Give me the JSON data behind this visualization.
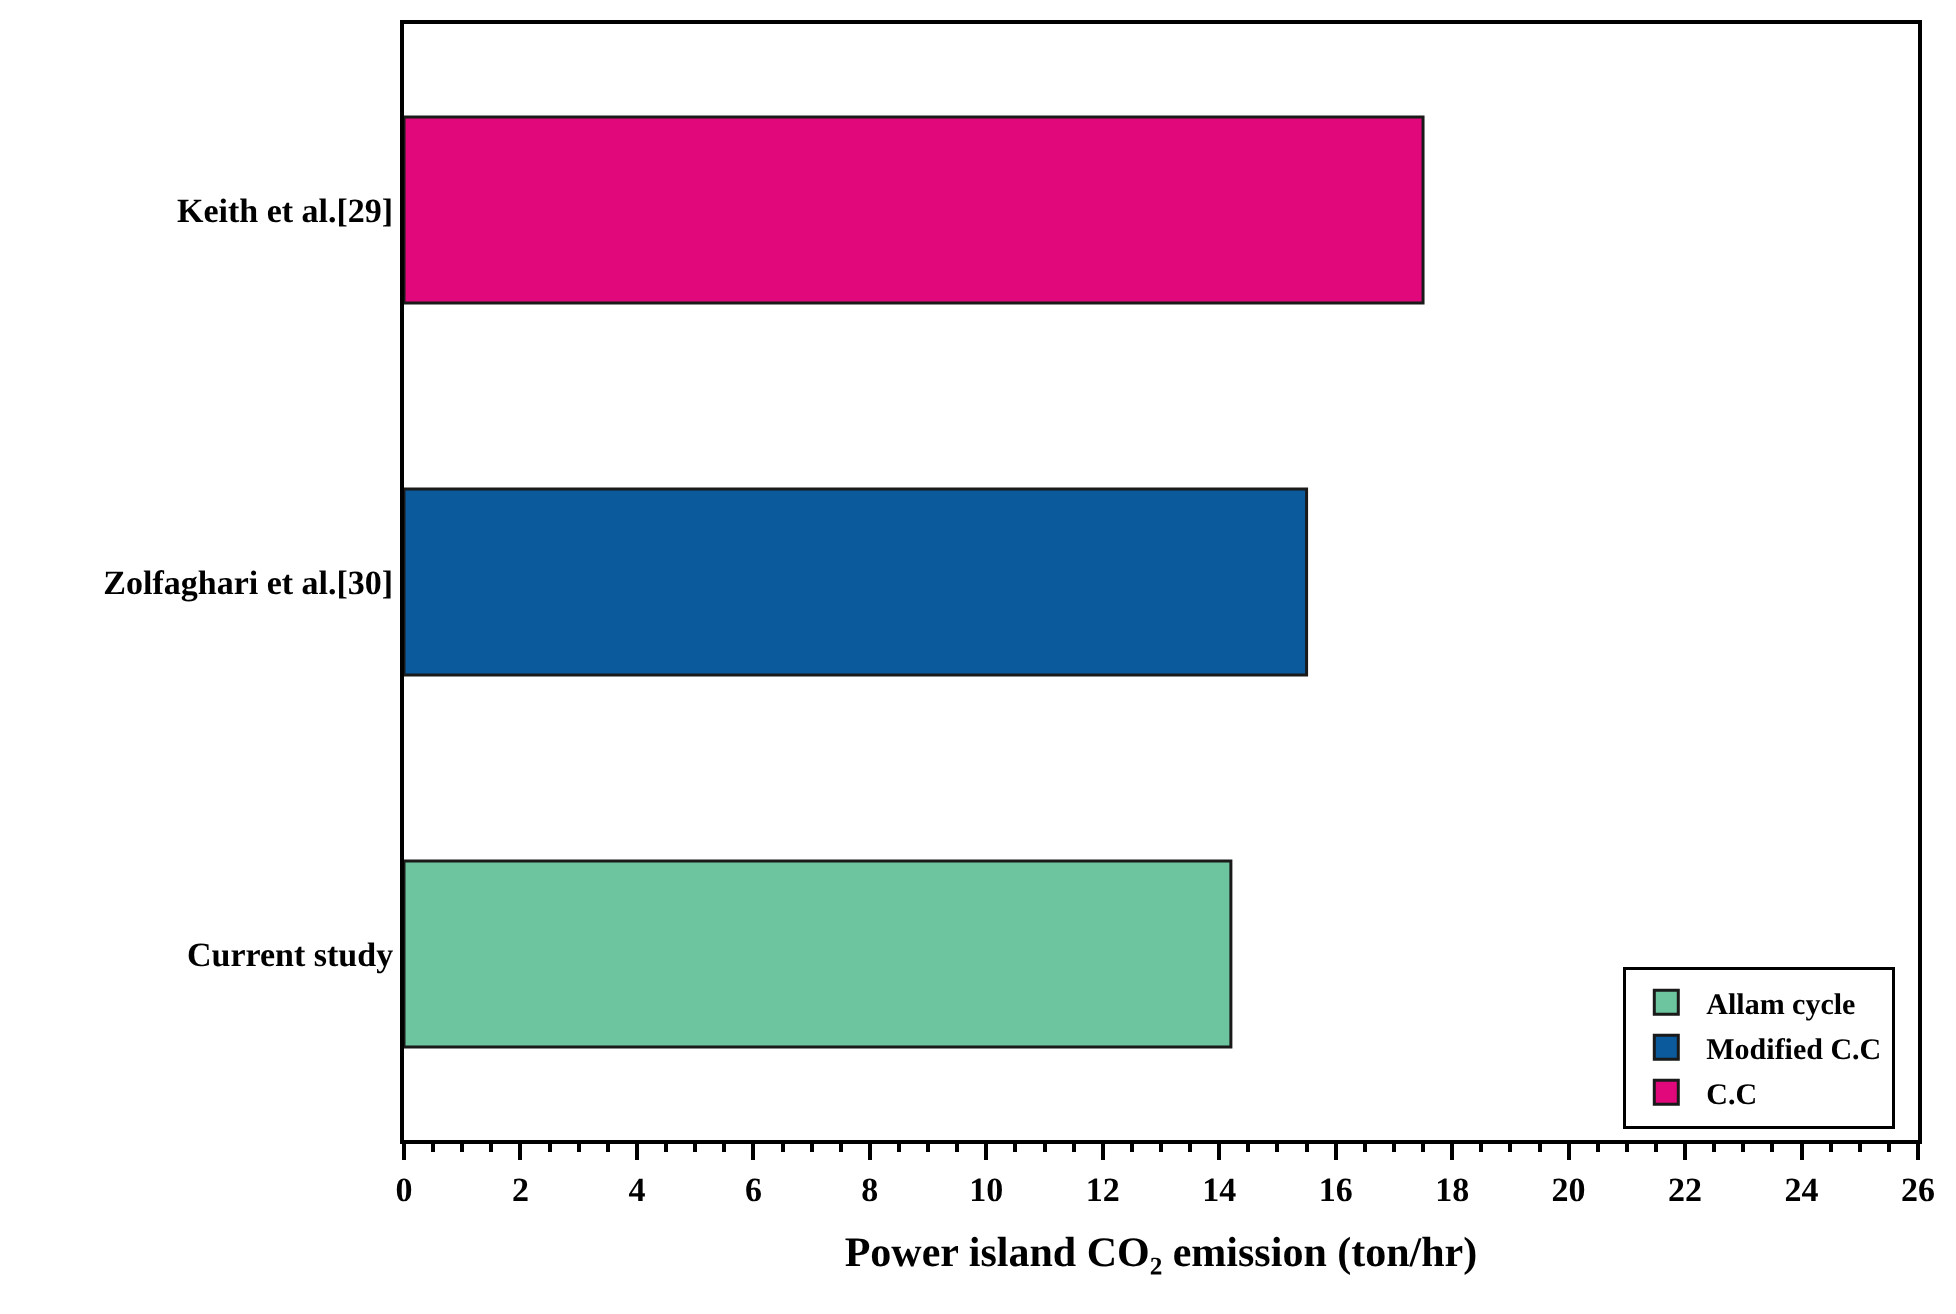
{
  "chart_data": {
    "type": "bar",
    "orientation": "horizontal",
    "xlabel": "Power island CO₂ emission (ton/hr)",
    "categories": [
      "Keith et al.[29]",
      "Zolfaghari et al.[30]",
      "Current study"
    ],
    "series": [
      {
        "name": "Allam cycle",
        "color": "#6cc59f",
        "values": [
          null,
          null,
          14.2
        ]
      },
      {
        "name": "Modified C.C",
        "color": "#0a5a9c",
        "values": [
          null,
          15.5,
          null
        ]
      },
      {
        "name": "C.C",
        "color": "#e0087a",
        "values": [
          17.5,
          null,
          null
        ]
      }
    ],
    "xlim": [
      0,
      26
    ],
    "xticks": [
      0,
      2,
      4,
      6,
      8,
      10,
      12,
      14,
      16,
      18,
      20,
      22,
      24,
      26
    ],
    "legend": "bottom right"
  }
}
